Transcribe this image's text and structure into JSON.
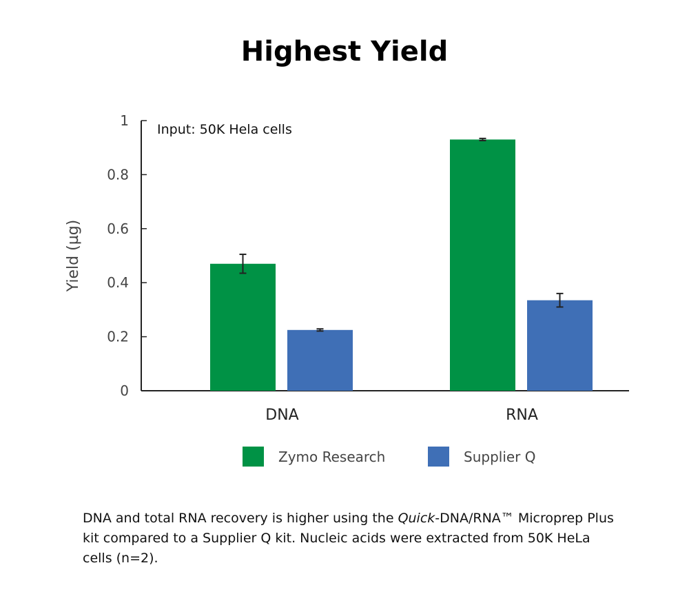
{
  "title": "Highest Yield",
  "caption": {
    "before": "DNA and total RNA recovery is higher using the ",
    "italic": "Quick",
    "after": "-DNA/RNA™ Microprep Plus kit compared to a Supplier Q kit. Nucleic acids were extracted from 50K HeLa cells (n=2)."
  },
  "chart_data": {
    "type": "bar",
    "title": "",
    "annotation": "Input: 50K Hela cells",
    "xlabel": "",
    "ylabel": "Yield (µg)",
    "ylim": [
      0,
      1
    ],
    "yticks": [
      "0",
      "0.2",
      "0.4",
      "0.6",
      "0.8",
      "1"
    ],
    "categories": [
      "DNA",
      "RNA"
    ],
    "grid": false,
    "legend_position": "bottom",
    "series": [
      {
        "name": "Zymo Research",
        "color": "#009245",
        "values": [
          0.47,
          0.93
        ],
        "errors": [
          0.035,
          0.004
        ]
      },
      {
        "name": "Supplier Q",
        "color": "#3f6fb6",
        "values": [
          0.225,
          0.335
        ],
        "errors": [
          0.004,
          0.025
        ]
      }
    ]
  }
}
